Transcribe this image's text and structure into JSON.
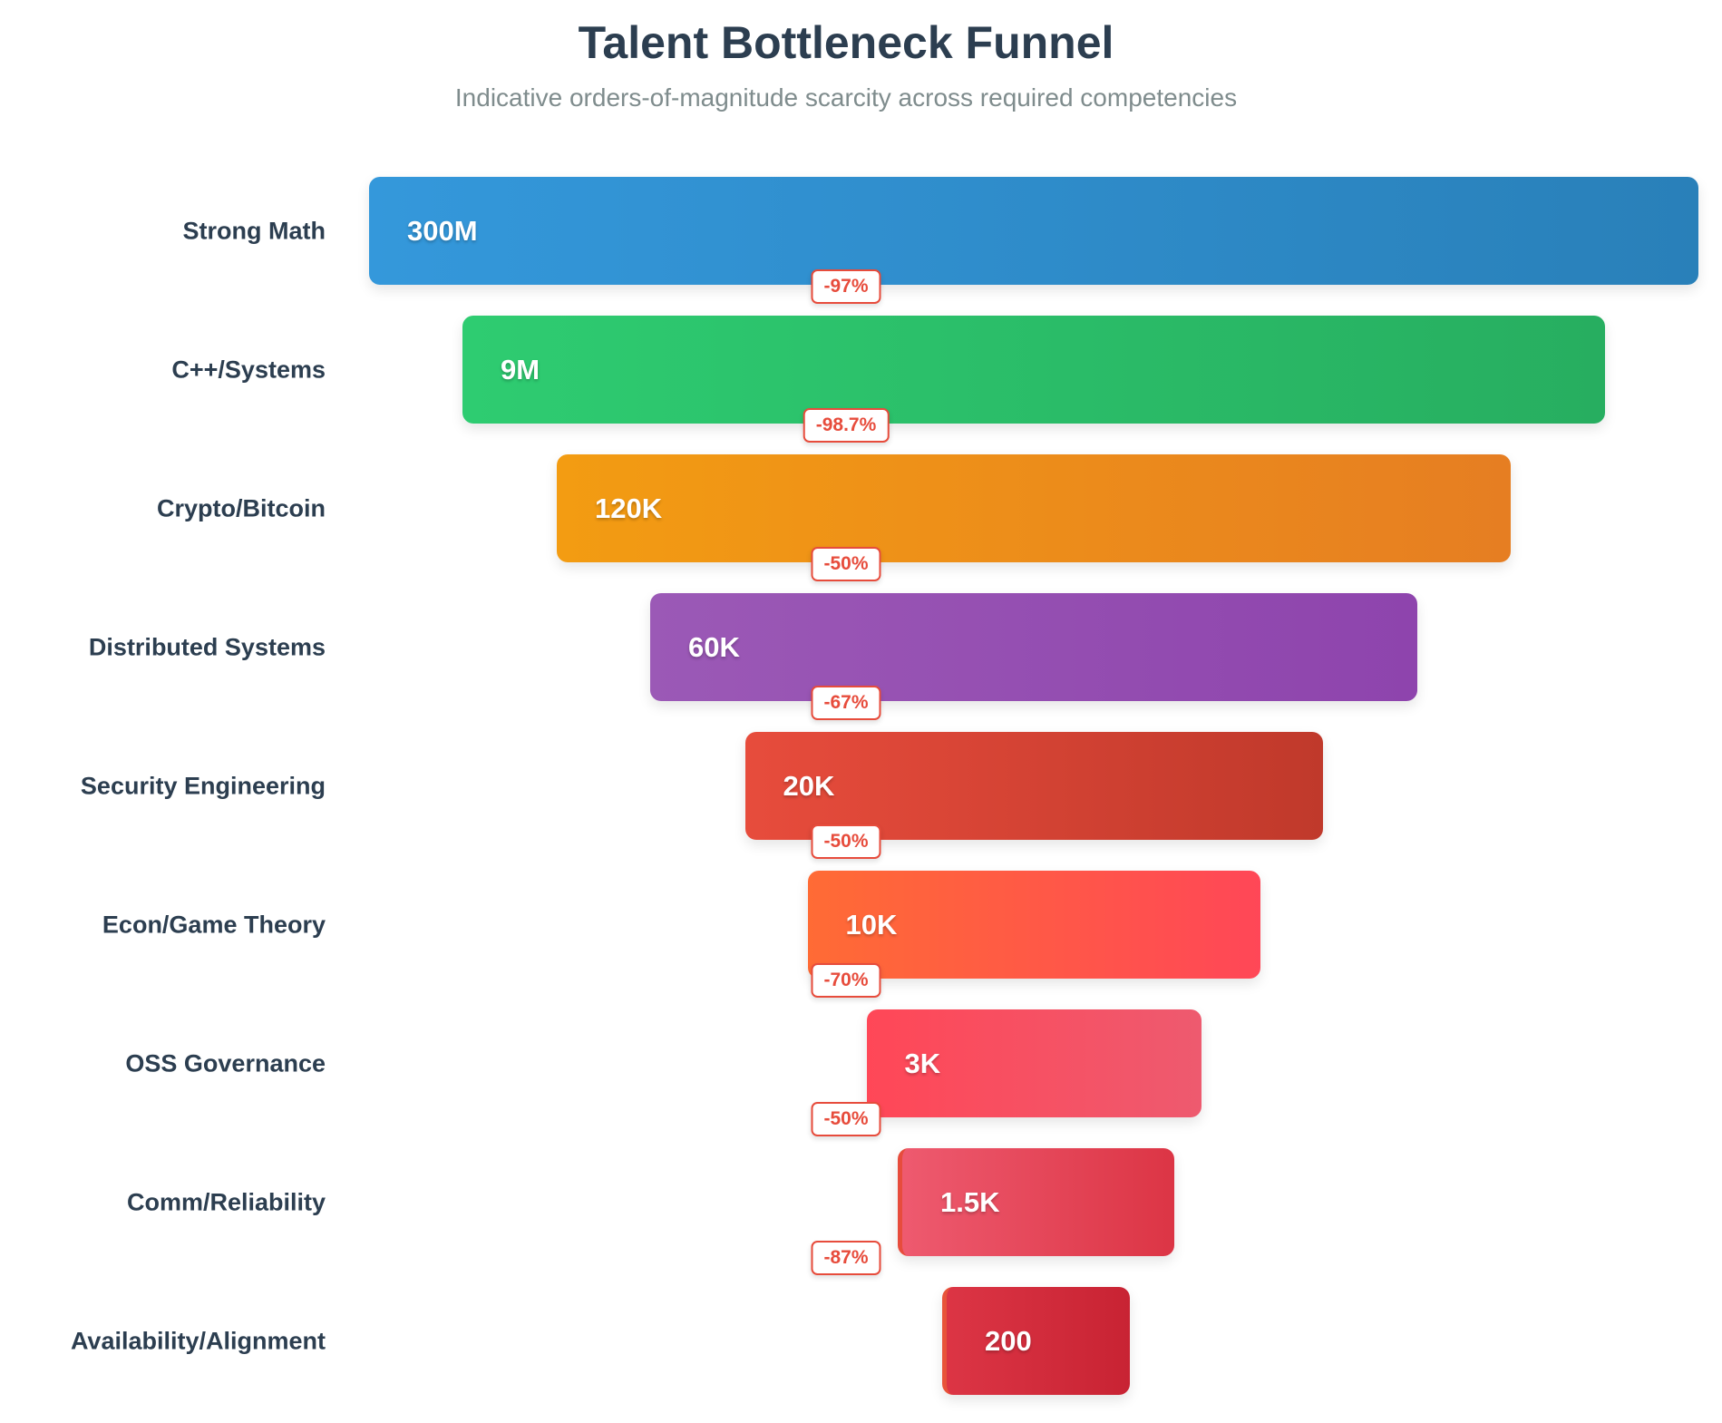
{
  "chart_data": {
    "type": "bar",
    "orientation": "horizontal-funnel",
    "title": "Talent Bottleneck Funnel",
    "subtitle": "Indicative orders-of-magnitude scarcity across required competencies",
    "categories": [
      "Strong Math",
      "C++/Systems",
      "Crypto/Bitcoin",
      "Distributed Systems",
      "Security Engineering",
      "Econ/Game Theory",
      "OSS Governance",
      "Comm/Reliability",
      "Availability/Alignment"
    ],
    "values": [
      300000000,
      9000000,
      120000,
      60000,
      20000,
      10000,
      3000,
      1500,
      200
    ],
    "value_labels": [
      "300M",
      "9M",
      "120K",
      "60K",
      "20K",
      "10K",
      "3K",
      "1.5K",
      "200"
    ],
    "drop_labels": [
      "-97%",
      "-98.7%",
      "-50%",
      "-67%",
      "-50%",
      "-70%",
      "-50%",
      "-87%"
    ],
    "colors": [
      [
        "#3498db",
        "#2980b9"
      ],
      [
        "#2ecc71",
        "#27ae60"
      ],
      [
        "#f39c12",
        "#e67e22"
      ],
      [
        "#9b59b6",
        "#8e44ad"
      ],
      [
        "#e74c3c",
        "#c0392b"
      ],
      [
        "#ff6b35",
        "#ff4757"
      ],
      [
        "#ff4757",
        "#ee5a6f"
      ],
      [
        "#ee5a6f",
        "#dc3545"
      ],
      [
        "#dc3545",
        "#c82333"
      ]
    ],
    "drop_badge_color": "#e74c3c",
    "grid": false,
    "legend": "none"
  }
}
